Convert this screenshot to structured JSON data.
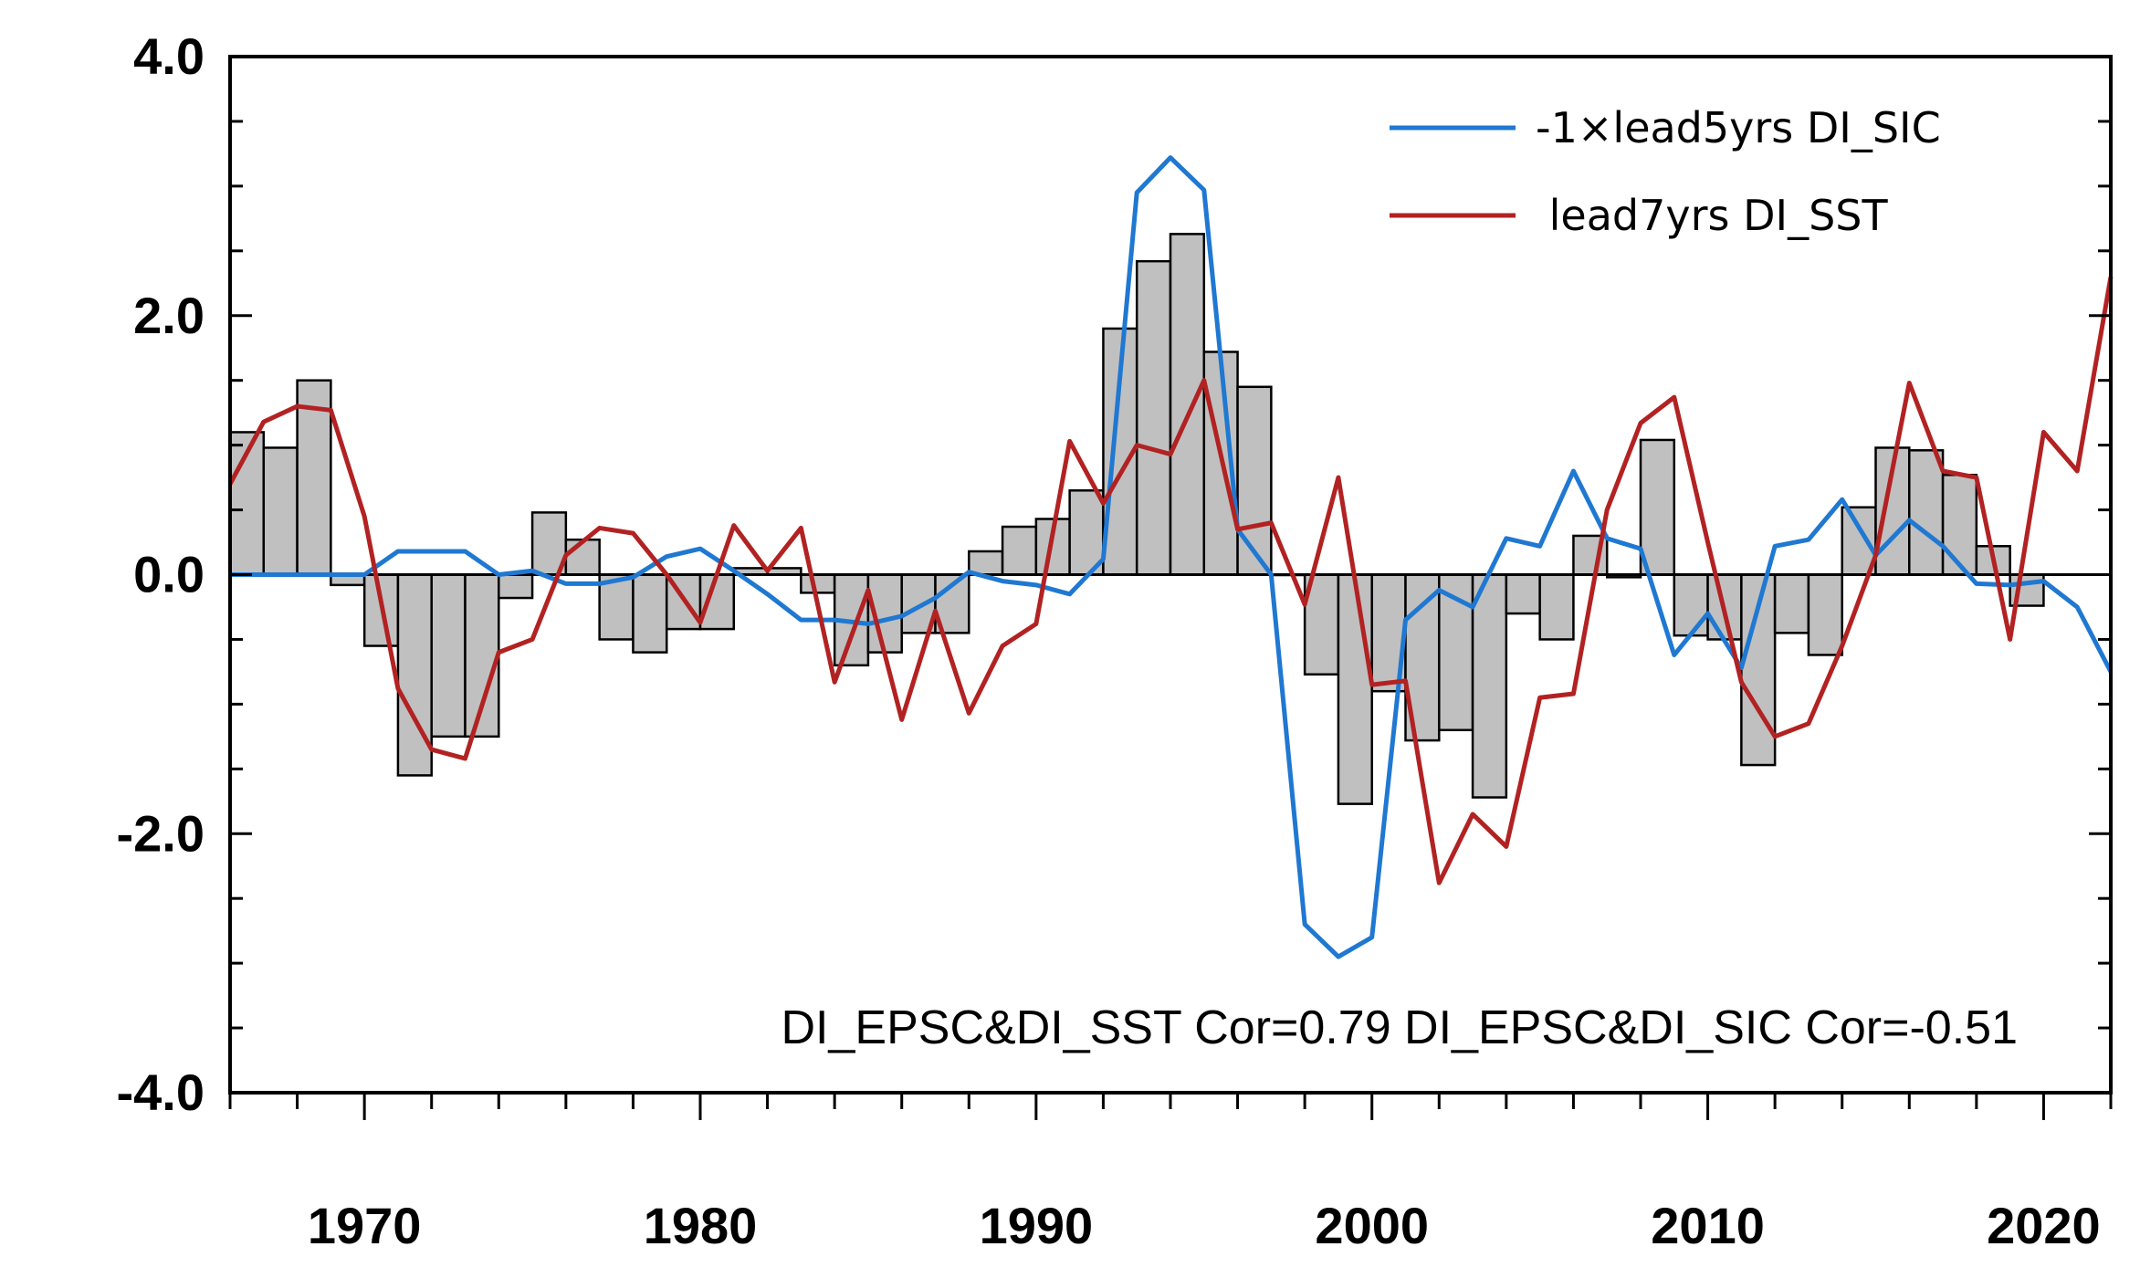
{
  "chart_data": {
    "type": "bar",
    "title": "",
    "xlabel": "",
    "ylabel": "",
    "xlim": [
      1966,
      2022
    ],
    "ylim": [
      -4.0,
      4.0
    ],
    "yticks": [
      4.0,
      2.0,
      0.0,
      -2.0,
      -4.0
    ],
    "ytick_labels": [
      "4.0",
      "2.0",
      "0.0",
      "-2.0",
      "-4.0"
    ],
    "xticks": [
      1970,
      1980,
      1990,
      2000,
      2010,
      2020
    ],
    "xtick_labels": [
      "1970",
      "1980",
      "1990",
      "2000",
      "2010",
      "2020"
    ],
    "legend": {
      "position": "top-right"
    },
    "bars": {
      "fill": "#c0c0c0",
      "x": [
        1966,
        1967,
        1968,
        1969,
        1970,
        1971,
        1972,
        1973,
        1974,
        1975,
        1976,
        1977,
        1978,
        1979,
        1980,
        1981,
        1982,
        1983,
        1984,
        1985,
        1986,
        1987,
        1988,
        1989,
        1990,
        1991,
        1992,
        1993,
        1994,
        1995,
        1996,
        1997,
        1998,
        1999,
        2000,
        2001,
        2002,
        2003,
        2004,
        2005,
        2006,
        2007,
        2008,
        2009,
        2010,
        2011,
        2012,
        2013,
        2014,
        2015,
        2016,
        2017,
        2018,
        2019
      ],
      "values": [
        1.1,
        0.98,
        1.5,
        -0.08,
        -0.55,
        -1.55,
        -1.25,
        -1.25,
        -0.18,
        0.48,
        0.27,
        -0.5,
        -0.6,
        -0.42,
        -0.42,
        0.05,
        0.05,
        -0.14,
        -0.7,
        -0.6,
        -0.45,
        -0.45,
        0.18,
        0.37,
        0.43,
        0.65,
        1.9,
        2.42,
        2.63,
        1.72,
        1.45,
        0.0,
        -0.77,
        -1.77,
        -0.9,
        -1.28,
        -1.2,
        -1.72,
        -0.3,
        -0.5,
        0.3,
        -0.02,
        1.04,
        -0.47,
        -0.5,
        -1.47,
        -0.45,
        -0.62,
        0.52,
        0.98,
        0.96,
        0.77,
        0.22,
        -0.24
      ]
    },
    "series": [
      {
        "name": "-1×lead5yrs DI_SIC",
        "color": "#1f78d1",
        "x": [
          1966,
          1967,
          1968,
          1969,
          1970,
          1971,
          1972,
          1973,
          1974,
          1975,
          1976,
          1977,
          1978,
          1979,
          1980,
          1981,
          1982,
          1983,
          1984,
          1985,
          1986,
          1987,
          1988,
          1989,
          1990,
          1991,
          1992,
          1993,
          1994,
          1995,
          1996,
          1997,
          1998,
          1999,
          2000,
          2001,
          2002,
          2003,
          2004,
          2005,
          2006,
          2007,
          2008,
          2009,
          2010,
          2011,
          2012,
          2013,
          2014,
          2015,
          2016,
          2017,
          2018,
          2019,
          2020,
          2021,
          2022
        ],
        "values": [
          0.0,
          0.0,
          0.0,
          0.0,
          0.0,
          0.18,
          0.18,
          0.18,
          0.0,
          0.03,
          -0.07,
          -0.07,
          -0.02,
          0.14,
          0.2,
          0.03,
          -0.15,
          -0.35,
          -0.35,
          -0.38,
          -0.32,
          -0.18,
          0.02,
          -0.05,
          -0.08,
          -0.15,
          0.12,
          2.95,
          3.22,
          2.97,
          0.35,
          0.0,
          -2.7,
          -2.95,
          -2.8,
          -0.35,
          -0.12,
          -0.25,
          0.28,
          0.22,
          0.8,
          0.28,
          0.2,
          -0.62,
          -0.3,
          -0.72,
          0.22,
          0.27,
          0.58,
          0.15,
          0.42,
          0.22,
          -0.07,
          -0.08,
          -0.05,
          -0.25,
          -0.75
        ]
      },
      {
        "name": " lead7yrs DI_SST",
        "color": "#b22222",
        "x": [
          1966,
          1967,
          1968,
          1969,
          1970,
          1971,
          1972,
          1973,
          1974,
          1975,
          1976,
          1977,
          1978,
          1979,
          1980,
          1981,
          1982,
          1983,
          1984,
          1985,
          1986,
          1987,
          1988,
          1989,
          1990,
          1991,
          1992,
          1993,
          1994,
          1995,
          1996,
          1997,
          1998,
          1999,
          2000,
          2001,
          2002,
          2003,
          2004,
          2005,
          2006,
          2007,
          2008,
          2009,
          2010,
          2011,
          2012,
          2013,
          2014,
          2015,
          2016,
          2017,
          2018,
          2019,
          2020,
          2021,
          2022
        ],
        "values": [
          0.7,
          1.18,
          1.3,
          1.27,
          0.45,
          -0.88,
          -1.35,
          -1.42,
          -0.6,
          -0.5,
          0.15,
          0.36,
          0.32,
          0.0,
          -0.37,
          0.38,
          0.03,
          0.36,
          -0.83,
          -0.12,
          -1.12,
          -0.28,
          -1.07,
          -0.55,
          -0.38,
          1.03,
          0.55,
          1.0,
          0.93,
          1.5,
          0.35,
          0.4,
          -0.23,
          0.75,
          -0.85,
          -0.82,
          -2.38,
          -1.85,
          -2.1,
          -0.95,
          -0.92,
          0.5,
          1.17,
          1.37,
          0.25,
          -0.83,
          -1.25,
          -1.15,
          -0.55,
          0.15,
          1.48,
          0.8,
          0.75,
          -0.5,
          1.1,
          0.8,
          2.3
        ]
      }
    ],
    "annotation": "DI_EPSC&DI_SST Cor=0.79 DI_EPSC&DI_SIC Cor=-0.51"
  }
}
